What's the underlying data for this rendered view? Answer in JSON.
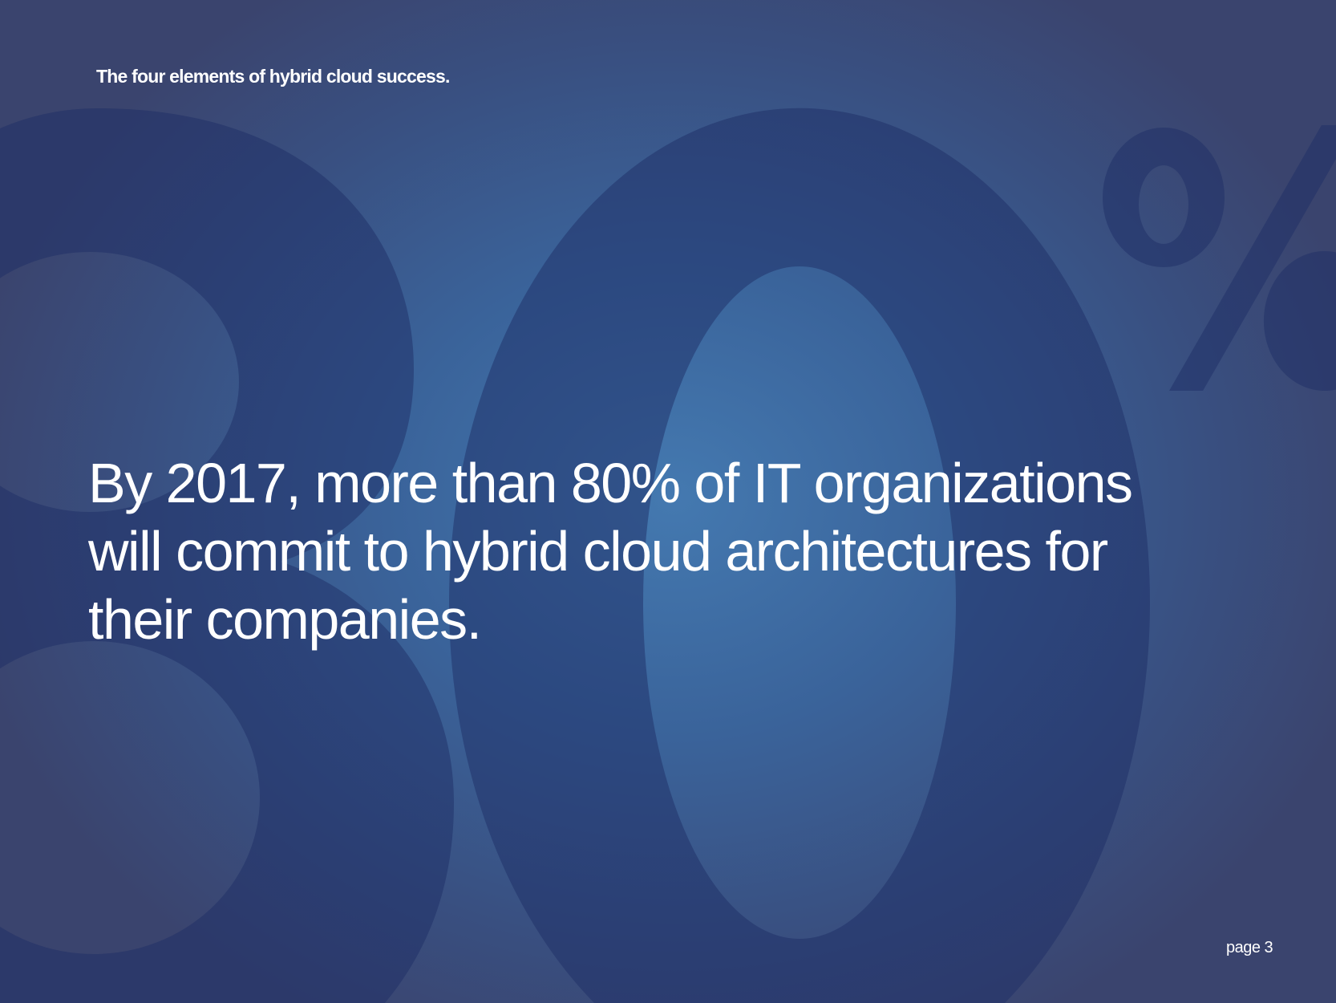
{
  "header": {
    "title": "The four elements of hybrid cloud success."
  },
  "background": {
    "numeral": "80%",
    "shape_color": "#1e2d66"
  },
  "main": {
    "statement": "By 2017, more than 80% of IT organizations will commit to hybrid cloud architectures for their companies."
  },
  "footer": {
    "page_label": "page 3"
  }
}
